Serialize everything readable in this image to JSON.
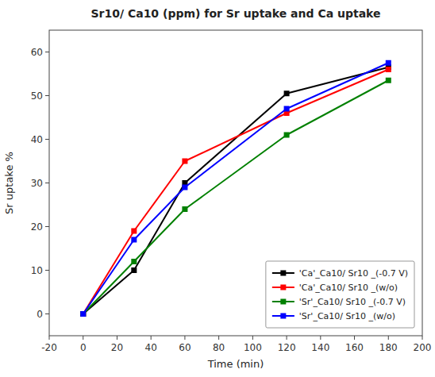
{
  "chart_data": {
    "type": "line",
    "title": "Sr10/ Ca10 (ppm) for Sr uptake and Ca uptake",
    "xlabel": "Time (min)",
    "ylabel": "Sr uptake %",
    "x": [
      0,
      30,
      60,
      120,
      180
    ],
    "series": [
      {
        "name": "'Ca'_Ca10/ Sr10 _(-0.7 V)",
        "color": "black",
        "marker": "square",
        "values": [
          0,
          10,
          30,
          50.5,
          56.5
        ]
      },
      {
        "name": "'Ca'_Ca10/ Sr10 _(w/o)",
        "color": "red",
        "marker": "square",
        "values": [
          0,
          19,
          35,
          46,
          56
        ]
      },
      {
        "name": "'Sr'_Ca10/ Sr10 _(-0.7 V)",
        "color": "green",
        "marker": "square",
        "values": [
          0,
          12,
          24,
          41,
          53.5
        ]
      },
      {
        "name": "'Sr'_Ca10/ Sr10 _(w/o)",
        "color": "blue",
        "marker": "square",
        "values": [
          0,
          17,
          29,
          47,
          57.5
        ]
      }
    ],
    "xlim": [
      -20,
      200
    ],
    "ylim": [
      -5,
      65
    ],
    "xticks": [
      -20,
      0,
      20,
      40,
      60,
      80,
      100,
      120,
      140,
      160,
      180,
      200
    ],
    "yticks": [
      0,
      10,
      20,
      30,
      40,
      50,
      60
    ],
    "legend": "lower right",
    "grid": false
  }
}
